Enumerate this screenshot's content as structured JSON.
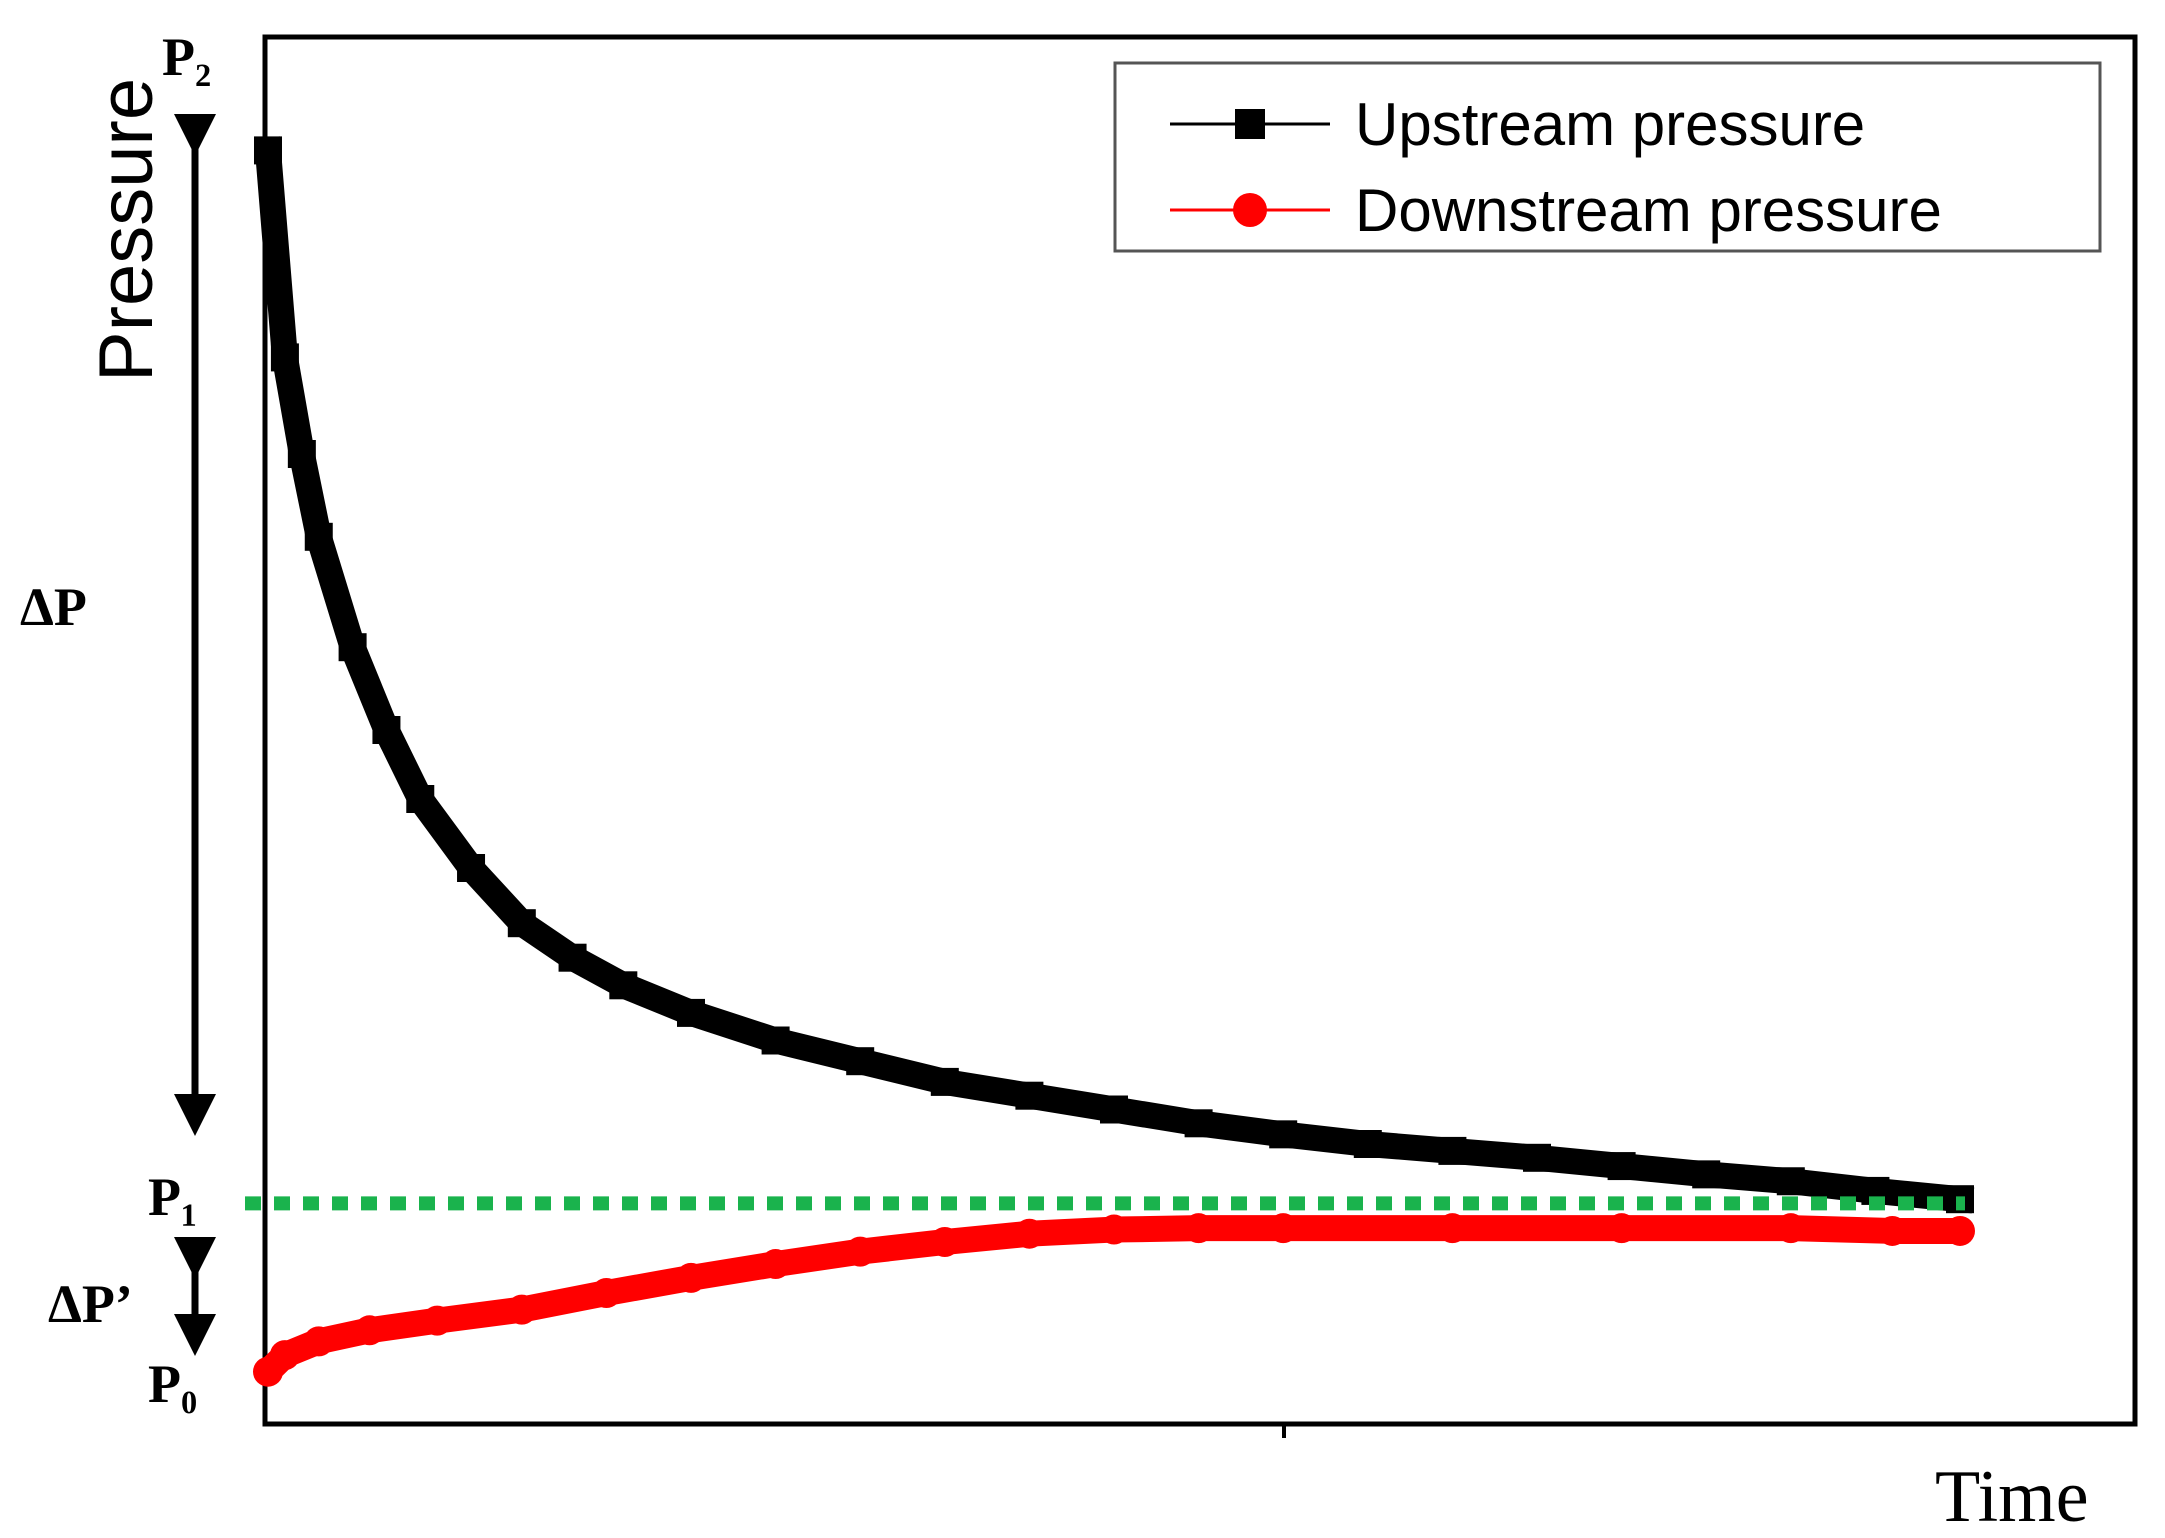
{
  "chart_data": {
    "type": "line",
    "xlabel": "Time",
    "ylabel": "Pressure",
    "xlim": [
      0,
      1
    ],
    "ylim": [
      0,
      1
    ],
    "grid": false,
    "legend_position": "top-right",
    "reference_levels": {
      "P2": {
        "label": "P₂",
        "value": 0.92
      },
      "P1": {
        "label": "P₁",
        "value": 0.157,
        "style": "dotted",
        "color": "#1ab34d"
      },
      "P0": {
        "label": "P₀",
        "value": 0.03
      }
    },
    "annotations": {
      "delta_p": "ΔP",
      "delta_p_prime": "ΔP’"
    },
    "series": [
      {
        "name": "Upstream pressure",
        "color": "#000000",
        "marker": "square",
        "x": [
          0.0,
          0.01,
          0.02,
          0.03,
          0.05,
          0.07,
          0.09,
          0.12,
          0.15,
          0.18,
          0.21,
          0.25,
          0.3,
          0.35,
          0.4,
          0.45,
          0.5,
          0.55,
          0.6,
          0.65,
          0.7,
          0.75,
          0.8,
          0.85,
          0.9,
          0.95,
          1.0
        ],
        "y": [
          0.92,
          0.77,
          0.7,
          0.64,
          0.56,
          0.5,
          0.45,
          0.4,
          0.36,
          0.335,
          0.315,
          0.295,
          0.275,
          0.26,
          0.245,
          0.235,
          0.225,
          0.215,
          0.207,
          0.2,
          0.195,
          0.19,
          0.184,
          0.178,
          0.173,
          0.166,
          0.16
        ]
      },
      {
        "name": "Downstream pressure",
        "color": "#ff0000",
        "marker": "circle",
        "x": [
          0.0,
          0.01,
          0.03,
          0.06,
          0.1,
          0.15,
          0.2,
          0.25,
          0.3,
          0.35,
          0.4,
          0.45,
          0.5,
          0.55,
          0.6,
          0.7,
          0.8,
          0.9,
          0.96,
          1.0
        ],
        "y": [
          0.035,
          0.047,
          0.057,
          0.065,
          0.072,
          0.08,
          0.092,
          0.103,
          0.113,
          0.122,
          0.129,
          0.135,
          0.138,
          0.139,
          0.139,
          0.139,
          0.139,
          0.139,
          0.137,
          0.137
        ]
      }
    ]
  }
}
